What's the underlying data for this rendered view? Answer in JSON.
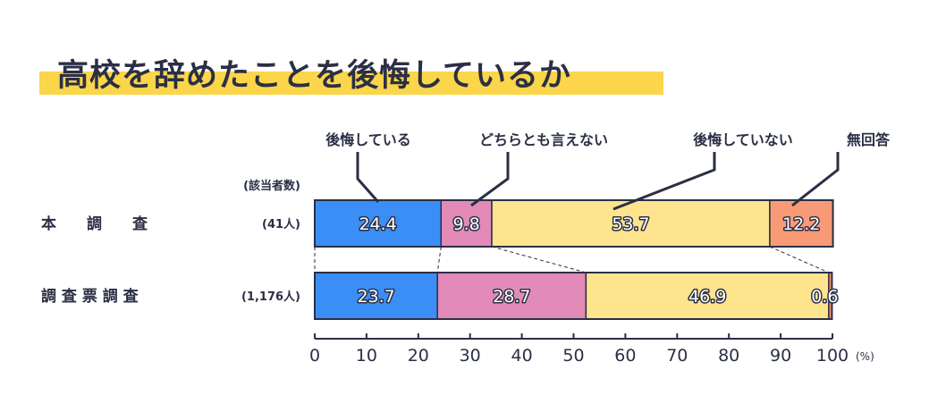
{
  "title": "高校を辞めたことを後悔しているか",
  "chart_data": {
    "type": "bar",
    "orientation": "horizontal",
    "stacked": true,
    "count_header": "(該当者数)",
    "x_unit": "(%)",
    "xlim": [
      0,
      100
    ],
    "x_ticks": [
      "0",
      "10",
      "20",
      "30",
      "40",
      "50",
      "60",
      "70",
      "80",
      "90",
      "100"
    ],
    "series": [
      {
        "name": "後悔している",
        "color": "#3a8ef6"
      },
      {
        "name": "どちらとも言えない",
        "color": "#e28bb8"
      },
      {
        "name": "後悔していない",
        "color": "#fde48d"
      },
      {
        "name": "無回答",
        "color": "#f99a77"
      }
    ],
    "rows": [
      {
        "category": "本　　調　　査",
        "count": "(41人)",
        "values": [
          24.4,
          9.8,
          53.7,
          12.2
        ],
        "labels": [
          "24.4",
          "9.8",
          "53.7",
          "12.2"
        ]
      },
      {
        "category": "調 査 票 調 査",
        "count": "(1,176人)",
        "values": [
          23.7,
          28.7,
          46.9,
          0.6
        ],
        "labels": [
          "23.7",
          "28.7",
          "46.9",
          "0.6"
        ]
      }
    ]
  }
}
